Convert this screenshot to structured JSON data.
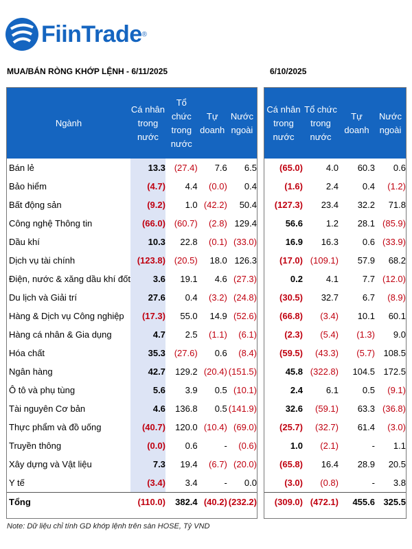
{
  "brand": {
    "name": "FiinTrade",
    "reg": "®"
  },
  "titles": {
    "left": "MUA/BÁN RÒNG KHỚP LỆNH - 6/11/2025",
    "right": "6/10/2025"
  },
  "headers_left": [
    "Ngành",
    "Cá nhân trong nước",
    "Tổ chức trong nước",
    "Tự doanh",
    "Nước ngoài"
  ],
  "headers_right": [
    "Cá nhân trong nước",
    "Tổ chức trong nước",
    "Tự doanh",
    "Nước ngoài"
  ],
  "rows": [
    {
      "name": "Bán lẻ",
      "a": [
        "13.3",
        "(27.4)",
        "7.6",
        "6.5"
      ],
      "b": [
        "(65.0)",
        "4.0",
        "60.3",
        "0.6"
      ]
    },
    {
      "name": "Bảo hiểm",
      "a": [
        "(4.7)",
        "4.4",
        "(0.0)",
        "0.4"
      ],
      "b": [
        "(1.6)",
        "2.4",
        "0.4",
        "(1.2)"
      ]
    },
    {
      "name": "Bất động sản",
      "a": [
        "(9.2)",
        "1.0",
        "(42.2)",
        "50.4"
      ],
      "b": [
        "(127.3)",
        "23.4",
        "32.2",
        "71.8"
      ]
    },
    {
      "name": "Công nghệ Thông tin",
      "a": [
        "(66.0)",
        "(60.7)",
        "(2.8)",
        "129.4"
      ],
      "b": [
        "56.6",
        "1.2",
        "28.1",
        "(85.9)"
      ]
    },
    {
      "name": "Dầu khí",
      "a": [
        "10.3",
        "22.8",
        "(0.1)",
        "(33.0)"
      ],
      "b": [
        "16.9",
        "16.3",
        "0.6",
        "(33.9)"
      ]
    },
    {
      "name": "Dịch vụ tài chính",
      "a": [
        "(123.8)",
        "(20.5)",
        "18.0",
        "126.3"
      ],
      "b": [
        "(17.0)",
        "(109.1)",
        "57.9",
        "68.2"
      ]
    },
    {
      "name": "Điện, nước & xăng dầu khí đốt",
      "a": [
        "3.6",
        "19.1",
        "4.6",
        "(27.3)"
      ],
      "b": [
        "0.2",
        "4.1",
        "7.7",
        "(12.0)"
      ]
    },
    {
      "name": "Du lịch và Giải trí",
      "a": [
        "27.6",
        "0.4",
        "(3.2)",
        "(24.8)"
      ],
      "b": [
        "(30.5)",
        "32.7",
        "6.7",
        "(8.9)"
      ]
    },
    {
      "name": "Hàng & Dịch vụ Công nghiệp",
      "a": [
        "(17.3)",
        "55.0",
        "14.9",
        "(52.6)"
      ],
      "b": [
        "(66.8)",
        "(3.4)",
        "10.1",
        "60.1"
      ]
    },
    {
      "name": "Hàng cá nhân & Gia dụng",
      "a": [
        "4.7",
        "2.5",
        "(1.1)",
        "(6.1)"
      ],
      "b": [
        "(2.3)",
        "(5.4)",
        "(1.3)",
        "9.0"
      ]
    },
    {
      "name": "Hóa chất",
      "a": [
        "35.3",
        "(27.6)",
        "0.6",
        "(8.4)"
      ],
      "b": [
        "(59.5)",
        "(43.3)",
        "(5.7)",
        "108.5"
      ]
    },
    {
      "name": "Ngân hàng",
      "a": [
        "42.7",
        "129.2",
        "(20.4)",
        "(151.5)"
      ],
      "b": [
        "45.8",
        "(322.8)",
        "104.5",
        "172.5"
      ]
    },
    {
      "name": "Ô tô và phụ tùng",
      "a": [
        "5.6",
        "3.9",
        "0.5",
        "(10.1)"
      ],
      "b": [
        "2.4",
        "6.1",
        "0.5",
        "(9.1)"
      ]
    },
    {
      "name": "Tài nguyên Cơ bản",
      "a": [
        "4.6",
        "136.8",
        "0.5",
        "(141.9)"
      ],
      "b": [
        "32.6",
        "(59.1)",
        "63.3",
        "(36.8)"
      ]
    },
    {
      "name": "Thực phẩm và đồ uống",
      "a": [
        "(40.7)",
        "120.0",
        "(10.4)",
        "(69.0)"
      ],
      "b": [
        "(25.7)",
        "(32.7)",
        "61.4",
        "(3.0)"
      ]
    },
    {
      "name": "Truyền thông",
      "a": [
        "(0.0)",
        "0.6",
        "-",
        "(0.6)"
      ],
      "b": [
        "1.0",
        "(2.1)",
        "-",
        "1.1"
      ]
    },
    {
      "name": "Xây dựng và Vật liệu",
      "a": [
        "7.3",
        "19.4",
        "(6.7)",
        "(20.0)"
      ],
      "b": [
        "(65.8)",
        "16.4",
        "28.9",
        "20.5"
      ]
    },
    {
      "name": "Y tế",
      "a": [
        "(3.4)",
        "3.4",
        "-",
        "0.0"
      ],
      "b": [
        "(3.0)",
        "(0.8)",
        "-",
        "3.8"
      ]
    }
  ],
  "total": {
    "name": "Tổng",
    "a": [
      "(110.0)",
      "382.4",
      "(40.2)",
      "(232.2)"
    ],
    "b": [
      "(309.0)",
      "(472.1)",
      "455.6",
      "325.5"
    ]
  },
  "note": "Note: Dữ liệu chỉ tính GD khớp lệnh trên sàn HOSE, Tỷ VND",
  "colors": {
    "header": "#1565c0",
    "negative": "#c0000f",
    "highlight": "#dde4f5"
  }
}
